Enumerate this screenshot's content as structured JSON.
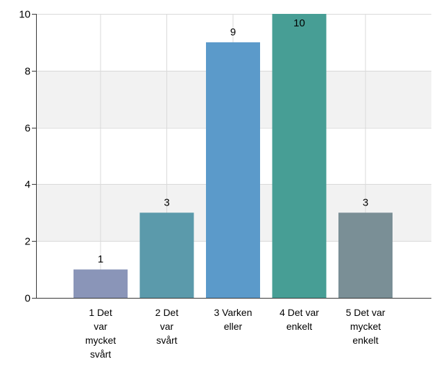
{
  "chart_data": {
    "type": "bar",
    "categories": [
      [
        "1 Det",
        "var",
        "mycket",
        "svårt"
      ],
      [
        "2 Det",
        "var",
        "svårt"
      ],
      [
        "3 Varken",
        "eller"
      ],
      [
        "4 Det var",
        "enkelt"
      ],
      [
        "5 Det var",
        "mycket",
        "enkelt"
      ]
    ],
    "values": [
      1,
      3,
      9,
      10,
      3
    ],
    "data_labels": [
      "1",
      "3",
      "9",
      "10",
      "3"
    ],
    "bar_colors": [
      "#8a95b8",
      "#5b9aab",
      "#5b9aca",
      "#479e95",
      "#7a8f96"
    ],
    "ylim": [
      0,
      10
    ],
    "yticks": [
      0,
      2,
      4,
      6,
      8,
      10
    ],
    "ytick_labels": [
      "0",
      "2",
      "4",
      "6",
      "8",
      "10"
    ],
    "grid": true,
    "band_color": "#f2f2f2",
    "grid_color": "#d9d9d9",
    "title": "",
    "xlabel": "",
    "ylabel": ""
  }
}
